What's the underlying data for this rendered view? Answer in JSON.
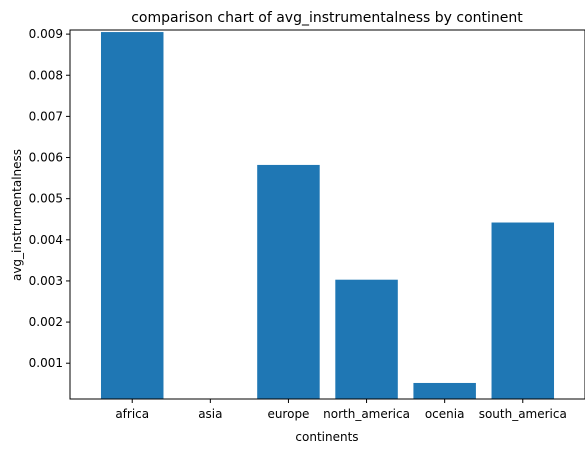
{
  "chart_data": {
    "type": "bar",
    "title": "comparison chart of avg_instrumentalness by continent",
    "xlabel": "continents",
    "ylabel": "avg_instrumentalness",
    "categories": [
      "africa",
      "asia",
      "europe",
      "north_america",
      "ocenia",
      "south_america"
    ],
    "values": [
      0.00905,
      0.0,
      0.00582,
      0.00303,
      0.00052,
      0.00442
    ],
    "ylim": [
      0.00013,
      0.0091
    ],
    "yticks": [
      0.001,
      0.002,
      0.003,
      0.004,
      0.005,
      0.006,
      0.007,
      0.008,
      0.009
    ],
    "ytick_labels": [
      "0.001",
      "0.002",
      "0.003",
      "0.004",
      "0.005",
      "0.006",
      "0.007",
      "0.008",
      "0.009"
    ],
    "bar_color": "#1f77b4",
    "grid": false,
    "legend": false
  }
}
